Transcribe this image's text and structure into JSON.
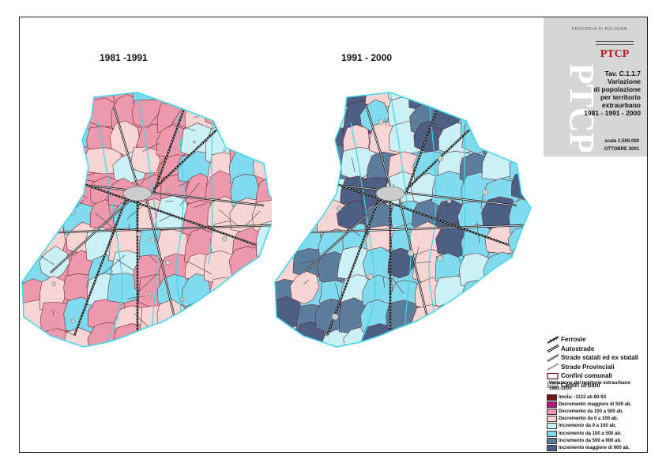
{
  "maps": {
    "left_title": "1981 -1991",
    "right_title": "1991 - 2000"
  },
  "header": {
    "province": "PROVINCIA DI BOLOGNA",
    "plan_logo": "PTCP",
    "tav_lines": [
      "Tav. C.1.1.7",
      "Variazione",
      "di popolazione",
      "per territorio",
      "extraurbano",
      "1981 - 1991 - 2000"
    ],
    "scale": "scala 1:500.000",
    "date": "OTTOBRE 2001"
  },
  "legend_lines": [
    {
      "label": "Ferrovie",
      "icon": "railway-line"
    },
    {
      "label": "Autostrade",
      "icon": "motorway-line"
    },
    {
      "label": "Strade statali ed ex statali",
      "icon": "state-road-line"
    },
    {
      "label": "Strade Provinciali",
      "icon": "provincial-road-line"
    },
    {
      "label": "Confini comunali",
      "icon": "municipal-boundary-box"
    },
    {
      "label": "Centri urbani",
      "icon": "urban-centre-box"
    }
  ],
  "legend_classes": {
    "title_lines": [
      "Variazione del territorio extraurbano",
      "1981-2000"
    ],
    "items": [
      {
        "label": "Imola: -1133 ab 80-93",
        "color": "#7a1414"
      },
      {
        "label": "Decremento maggiore di 500 ab.",
        "color": "#c0137a"
      },
      {
        "label": "Decremento da 100 a 500 ab.",
        "color": "#ee98ad"
      },
      {
        "label": "Decremento da 0 a 100 ab.",
        "color": "#f8d5d5"
      },
      {
        "label": "Incremento da 0 a 100 ab.",
        "color": "#c9f1f6"
      },
      {
        "label": "Incremento da 100 a 500 ab.",
        "color": "#80dbee"
      },
      {
        "label": "Incremento da 500 a 900 ab.",
        "color": "#5b7e9e"
      },
      {
        "label": "Incremento maggiore di 900 ab.",
        "color": "#4d5f84"
      }
    ]
  },
  "colors": {
    "urban": "#cccccc",
    "boundary": "#2a2a2a",
    "river": "#3fd6e8"
  }
}
